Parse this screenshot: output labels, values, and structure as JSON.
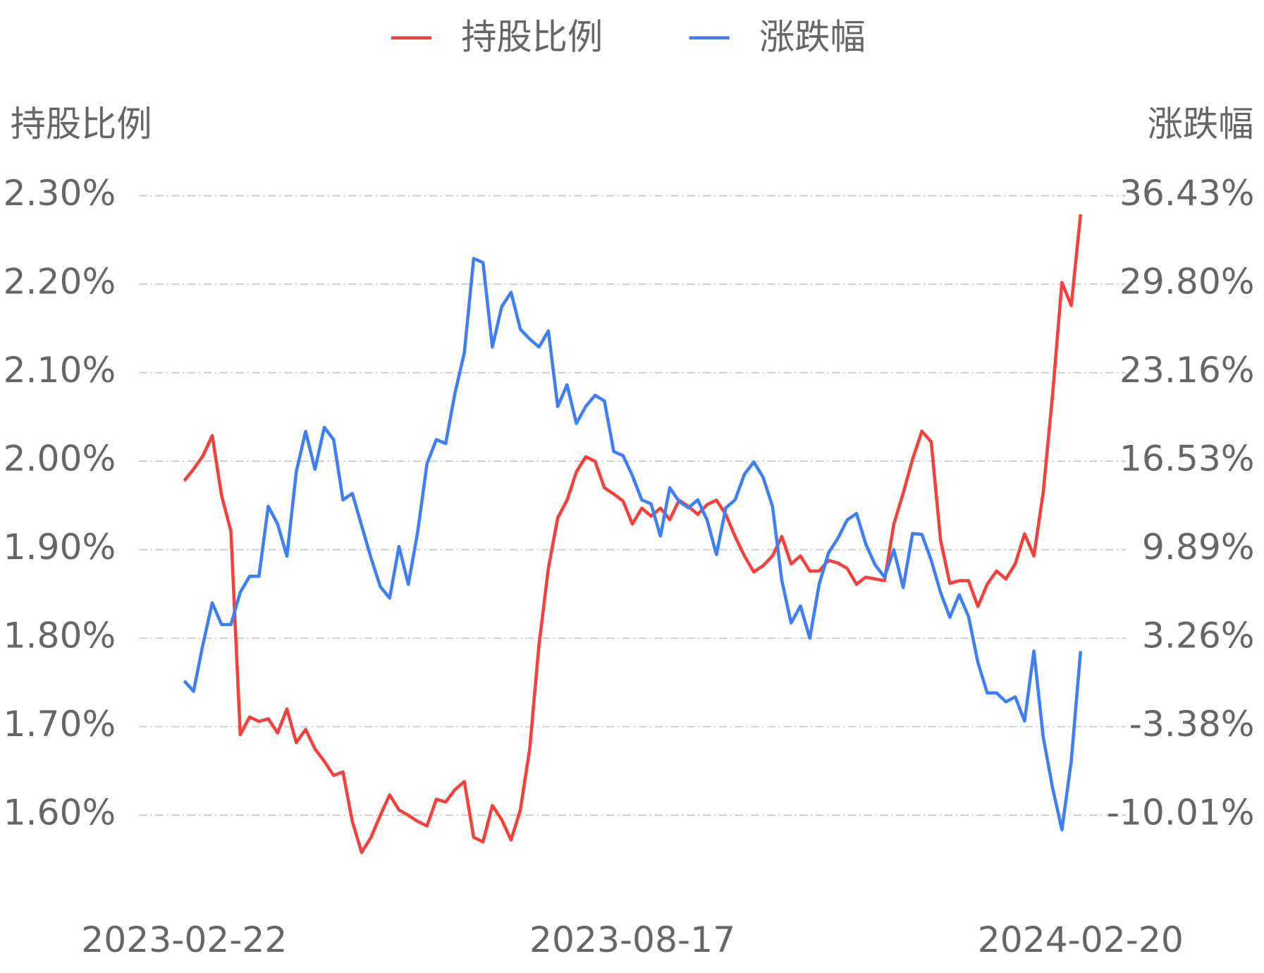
{
  "chart_data": {
    "type": "line",
    "y_label": "持股比例",
    "y2_label": "涨跌幅",
    "categories": [
      "2023-02-22",
      null,
      null,
      null,
      null,
      null,
      null,
      null,
      null,
      null,
      null,
      null,
      null,
      null,
      null,
      null,
      null,
      null,
      null,
      null,
      null,
      null,
      null,
      null,
      null,
      null,
      null,
      null,
      null,
      null,
      null,
      null,
      null,
      null,
      null,
      null,
      null,
      null,
      null,
      null,
      null,
      null,
      null,
      null,
      null,
      null,
      null,
      null,
      "2023-08-17",
      null,
      null,
      null,
      null,
      null,
      null,
      null,
      null,
      null,
      null,
      null,
      null,
      null,
      null,
      null,
      null,
      null,
      null,
      null,
      null,
      null,
      null,
      null,
      null,
      null,
      null,
      null,
      null,
      null,
      null,
      null,
      null,
      null,
      null,
      null,
      null,
      null,
      null,
      null,
      null,
      null,
      null,
      null,
      null,
      null,
      null,
      null,
      "2024-02-20"
    ],
    "series": [
      {
        "name": "持股比例",
        "color": "#f5403c",
        "values": [
          1.978,
          1.991,
          2.006,
          2.029,
          1.961,
          1.921,
          1.691,
          1.711,
          1.706,
          1.709,
          1.693,
          1.72,
          1.682,
          1.697,
          1.675,
          1.661,
          1.645,
          1.649,
          1.593,
          1.558,
          1.575,
          1.6,
          1.623,
          1.606,
          1.6,
          1.593,
          1.588,
          1.618,
          1.615,
          1.629,
          1.638,
          1.575,
          1.57,
          1.611,
          1.595,
          1.572,
          1.606,
          1.675,
          1.793,
          1.879,
          1.936,
          1.956,
          1.988,
          2.005,
          2.0,
          1.97,
          1.963,
          1.955,
          1.929,
          1.947,
          1.938,
          1.947,
          1.934,
          1.956,
          1.949,
          1.94,
          1.951,
          1.956,
          1.94,
          1.915,
          1.893,
          1.875,
          1.882,
          1.893,
          1.915,
          1.884,
          1.893,
          1.876,
          1.876,
          1.888,
          1.885,
          1.879,
          1.861,
          1.869,
          1.867,
          1.865,
          1.929,
          1.964,
          2.002,
          2.034,
          2.022,
          1.911,
          1.862,
          1.865,
          1.865,
          1.836,
          1.861,
          1.876,
          1.867,
          1.884,
          1.918,
          1.893,
          1.965,
          2.075,
          2.202,
          2.176,
          2.279
        ]
      },
      {
        "name": "涨跌幅",
        "color": "#3f7ff5",
        "axis": "y2",
        "values": [
          0.06,
          -0.72,
          2.78,
          5.91,
          4.28,
          4.28,
          6.7,
          7.9,
          7.9,
          13.15,
          11.82,
          9.41,
          15.74,
          18.76,
          15.92,
          19.06,
          18.15,
          13.63,
          14.11,
          11.7,
          9.29,
          7.12,
          6.27,
          10.13,
          7.3,
          11.22,
          16.34,
          18.15,
          17.85,
          21.65,
          24.67,
          31.72,
          31.42,
          25.09,
          28.11,
          29.19,
          26.42,
          25.69,
          25.09,
          26.3,
          20.63,
          22.26,
          19.36,
          20.63,
          21.47,
          21.05,
          17.25,
          16.95,
          15.44,
          13.63,
          13.33,
          10.92,
          14.54,
          13.51,
          13.03,
          13.63,
          12.12,
          9.53,
          13.03,
          13.63,
          15.56,
          16.47,
          15.32,
          13.15,
          7.6,
          4.4,
          5.67,
          3.26,
          7.3,
          9.65,
          10.74,
          12.12,
          12.61,
          10.31,
          8.75,
          7.84,
          9.89,
          7.06,
          11.1,
          11.04,
          9.11,
          6.7,
          4.83,
          6.51,
          4.89,
          1.45,
          -0.84,
          -0.84,
          -1.51,
          -1.14,
          -2.95,
          2.29,
          -4.16,
          -7.96,
          -11.1,
          -5.97,
          2.29
        ]
      }
    ],
    "ylim": [
      1.52,
      2.3
    ],
    "yticks": [
      {
        "value": 1.6,
        "label": "1.60%"
      },
      {
        "value": 1.7,
        "label": "1.70%"
      },
      {
        "value": 1.8,
        "label": "1.80%"
      },
      {
        "value": 1.9,
        "label": "1.90%"
      },
      {
        "value": 2.0,
        "label": "2.00%"
      },
      {
        "value": 2.1,
        "label": "2.10%"
      },
      {
        "value": 2.2,
        "label": "2.20%"
      },
      {
        "value": 2.3,
        "label": "2.30%"
      }
    ],
    "y2lim": [
      -15.32,
      36.43
    ],
    "y2ticks": [
      {
        "value": -10.01,
        "label": "-10.01%"
      },
      {
        "value": -3.38,
        "label": "-3.38%"
      },
      {
        "value": 3.26,
        "label": "3.26%"
      },
      {
        "value": 9.89,
        "label": "9.89%"
      },
      {
        "value": 16.53,
        "label": "16.53%"
      },
      {
        "value": 23.16,
        "label": "23.16%"
      },
      {
        "value": 29.8,
        "label": "29.80%"
      },
      {
        "value": 36.43,
        "label": "36.43%"
      }
    ],
    "grid": true,
    "legend": "top"
  }
}
